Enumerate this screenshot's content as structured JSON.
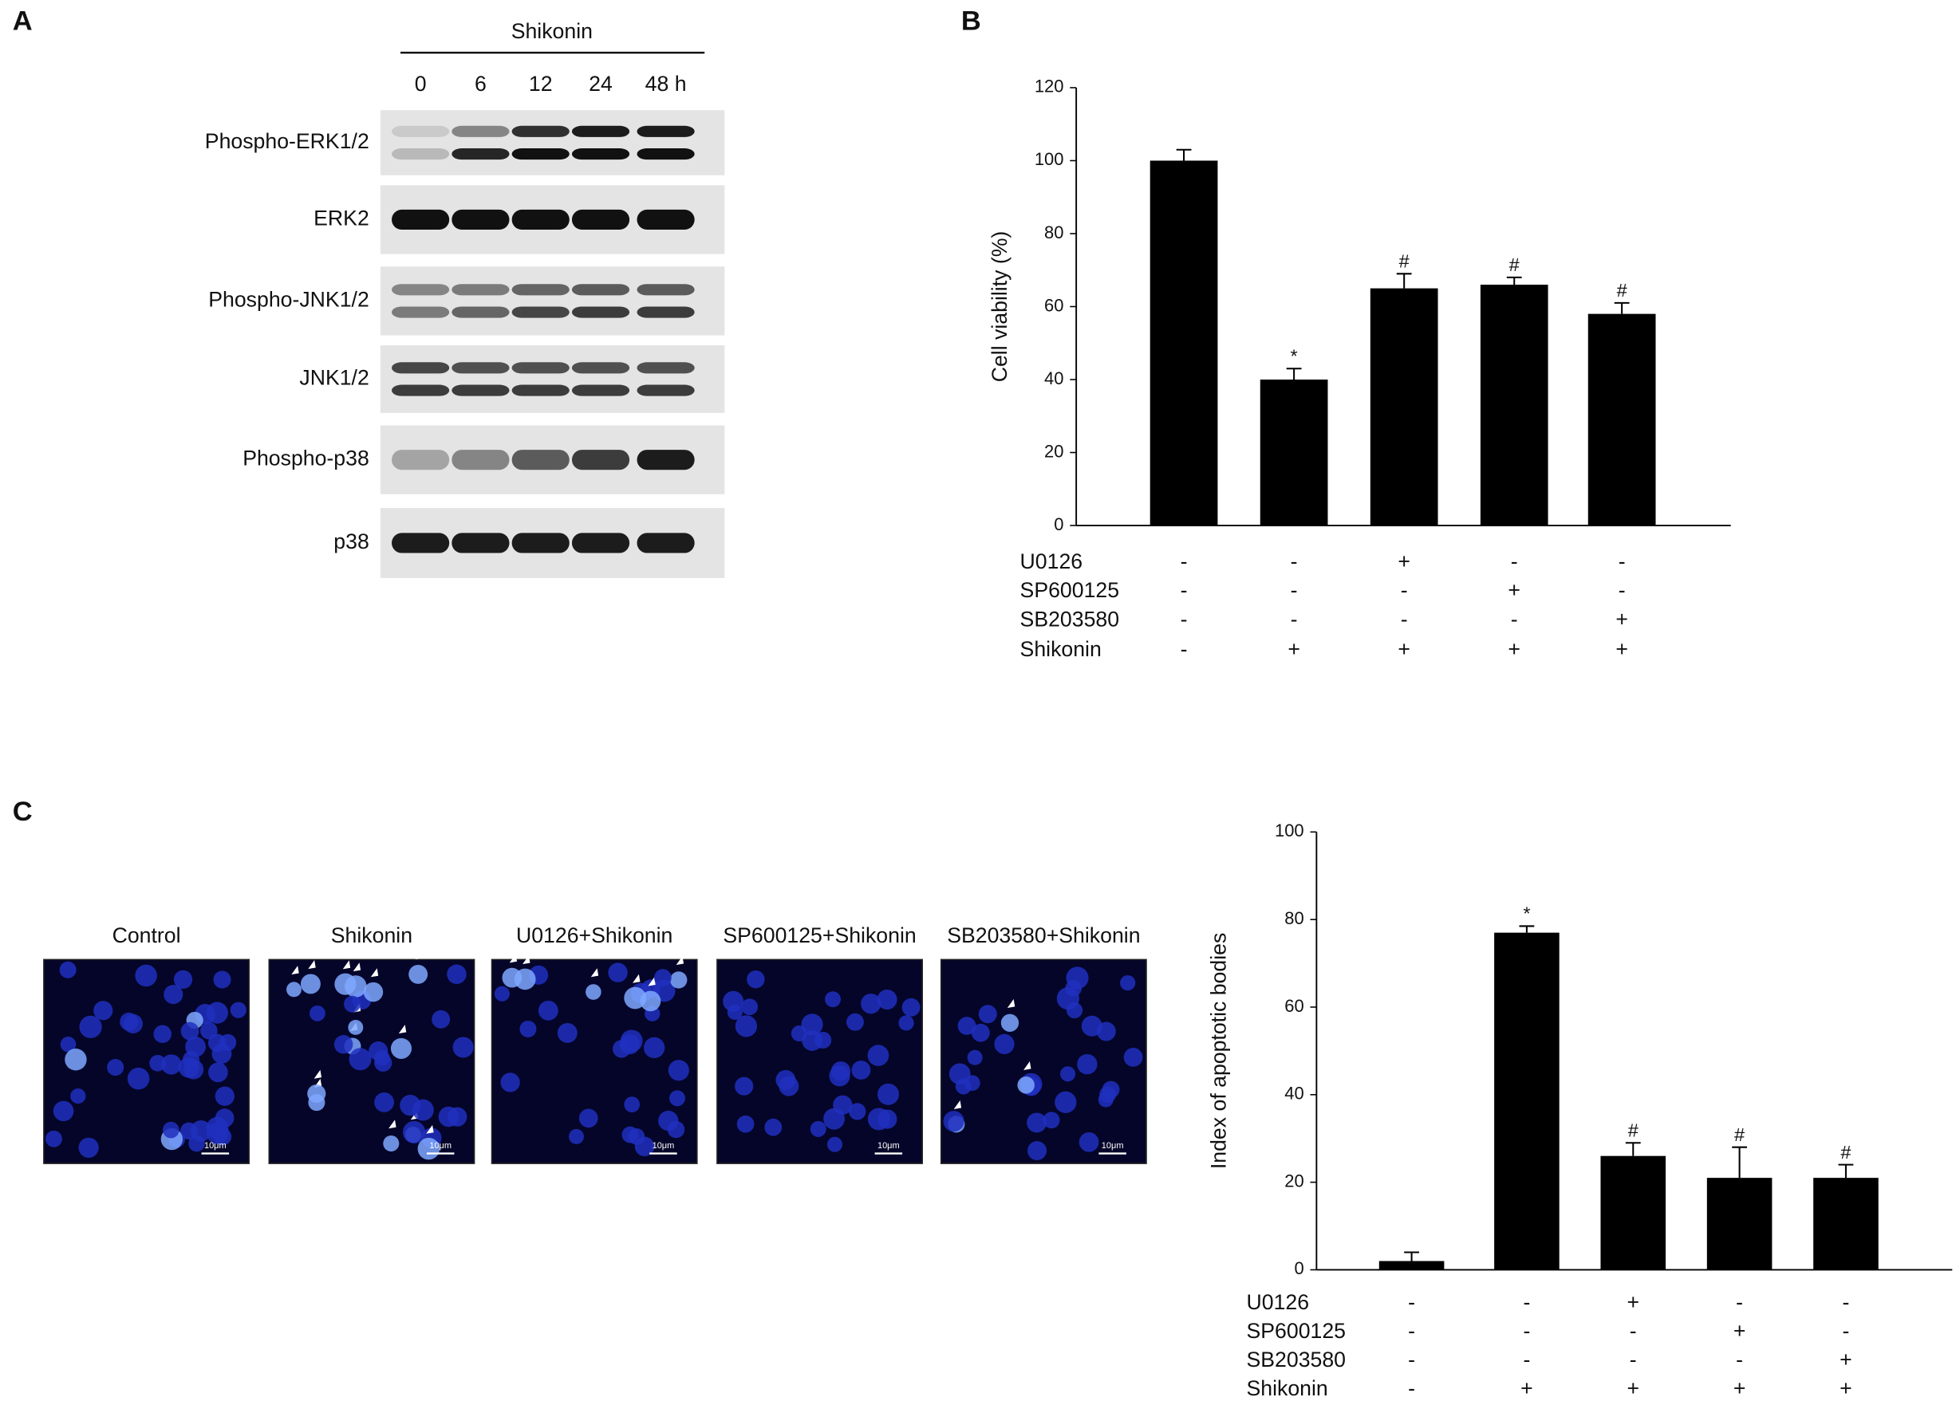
{
  "panel_labels": [
    "A",
    "B",
    "C"
  ],
  "western_blot": {
    "treatment": "Shikonin",
    "timepoints": [
      "0",
      "6",
      "12",
      "24",
      "48 h"
    ],
    "rows": [
      "Phospho-ERK1/2",
      "ERK2",
      "Phospho-JNK1/2",
      "JNK1/2",
      "Phospho-p38",
      "p38"
    ]
  },
  "microscopy": {
    "panels": [
      "Control",
      "Shikonin",
      "U0126+Shikonin",
      "SP600125+Shikonin",
      "SB203580+Shikonin"
    ],
    "scale_bar": "10μm"
  },
  "chart_data": [
    {
      "type": "bar",
      "y_label": "Cell viability (%)",
      "values": [
        100,
        40,
        65,
        66,
        58
      ],
      "errors": [
        3,
        3,
        4,
        2,
        3
      ],
      "significance": [
        null,
        "*",
        "#",
        "#",
        "#"
      ],
      "color": "#000000",
      "ylim": [
        0,
        120
      ],
      "yticks": [
        0,
        20,
        40,
        60,
        80,
        100,
        120
      ],
      "treatments": [
        {
          "name": "U0126",
          "signs": [
            "-",
            "-",
            "+",
            "-",
            "-"
          ]
        },
        {
          "name": "SP600125",
          "signs": [
            "-",
            "-",
            "-",
            "+",
            "-"
          ]
        },
        {
          "name": "SB203580",
          "signs": [
            "-",
            "-",
            "-",
            "-",
            "+"
          ]
        },
        {
          "name": "Shikonin",
          "signs": [
            "-",
            "+",
            "+",
            "+",
            "+"
          ]
        }
      ]
    },
    {
      "type": "bar",
      "y_label": "Index of apoptotic bodies",
      "values": [
        2,
        77,
        26,
        21,
        21
      ],
      "errors": [
        2,
        1.5,
        3,
        7,
        3
      ],
      "significance": [
        null,
        "*",
        "#",
        "#",
        "#"
      ],
      "color": "#000000",
      "ylim": [
        0,
        100
      ],
      "yticks": [
        0,
        20,
        40,
        60,
        80,
        100
      ],
      "treatments": [
        {
          "name": "U0126",
          "signs": [
            "-",
            "-",
            "+",
            "-",
            "-"
          ]
        },
        {
          "name": "SP600125",
          "signs": [
            "-",
            "-",
            "-",
            "+",
            "-"
          ]
        },
        {
          "name": "SB203580",
          "signs": [
            "-",
            "-",
            "-",
            "-",
            "+"
          ]
        },
        {
          "name": "Shikonin",
          "signs": [
            "-",
            "+",
            "+",
            "+",
            "+"
          ]
        }
      ]
    }
  ]
}
